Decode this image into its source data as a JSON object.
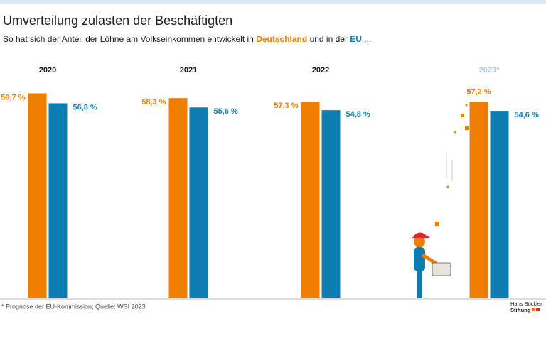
{
  "chart_data": {
    "type": "bar",
    "title": "Umverteilung zulasten der Beschäftigten",
    "subtitle": [
      "So hat sich der Anteil der Löhne am Volkseinkommen entwickelt in",
      "und in der",
      "..."
    ],
    "categories": [
      "2020",
      "2021",
      "2022",
      "2023*"
    ],
    "series": [
      {
        "name": "Deutschland",
        "color": "#f07d00",
        "values": [
          59.7,
          58.3,
          57.3,
          57.2
        ],
        "value_labels": [
          "59,7 %",
          "58,3 %",
          "57,3 %",
          "57,2 %"
        ]
      },
      {
        "name": "EU",
        "color": "#0b7db3",
        "values": [
          56.8,
          55.6,
          54.8,
          54.6
        ],
        "value_labels": [
          "56,8 %",
          "55,6 %",
          "54,8 %",
          "54,6 %"
        ]
      }
    ],
    "ylim": [
      0,
      60
    ],
    "footnote": "* Prognose der EU-Kommission; Quelle: WSI 2023",
    "logo": [
      "Hans Böckler",
      "Stiftung"
    ]
  }
}
